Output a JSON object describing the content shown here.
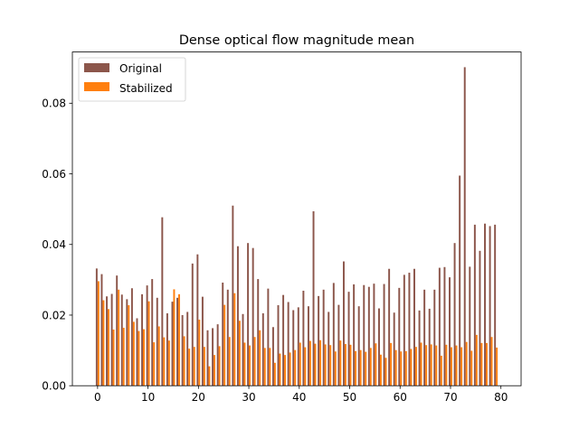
{
  "chart_data": {
    "type": "bar",
    "title": "Dense optical flow magnitude mean",
    "xlabel": "",
    "ylabel": "",
    "xlim": [
      -5,
      84
    ],
    "ylim": [
      0,
      0.0945
    ],
    "xticks": [
      0,
      10,
      20,
      30,
      40,
      50,
      60,
      70,
      80
    ],
    "yticks": [
      0.0,
      0.02,
      0.04,
      0.06,
      0.08
    ],
    "ytick_labels": [
      "0.00",
      "0.02",
      "0.04",
      "0.06",
      "0.08"
    ],
    "legend": {
      "position": "upper-left"
    },
    "x": [
      0,
      1,
      2,
      3,
      4,
      5,
      6,
      7,
      8,
      9,
      10,
      11,
      12,
      13,
      14,
      15,
      16,
      17,
      18,
      19,
      20,
      21,
      22,
      23,
      24,
      25,
      26,
      27,
      28,
      29,
      30,
      31,
      32,
      33,
      34,
      35,
      36,
      37,
      38,
      39,
      40,
      41,
      42,
      43,
      44,
      45,
      46,
      47,
      48,
      49,
      50,
      51,
      52,
      53,
      54,
      55,
      56,
      57,
      58,
      59,
      60,
      61,
      62,
      63,
      64,
      65,
      66,
      67,
      68,
      69,
      70,
      71,
      72,
      73,
      74,
      75,
      76,
      77,
      78,
      79
    ],
    "series": [
      {
        "name": "Original",
        "color": "#8c564b",
        "values": [
          0.0332,
          0.0316,
          0.0253,
          0.026,
          0.0312,
          0.0258,
          0.0245,
          0.0276,
          0.0191,
          0.0259,
          0.0284,
          0.0302,
          0.0249,
          0.0477,
          0.0205,
          0.0238,
          0.0249,
          0.02,
          0.0209,
          0.0346,
          0.0372,
          0.0252,
          0.0157,
          0.0163,
          0.0174,
          0.0292,
          0.0272,
          0.051,
          0.0395,
          0.0203,
          0.0404,
          0.039,
          0.0302,
          0.0205,
          0.0275,
          0.0166,
          0.0228,
          0.0257,
          0.0237,
          0.0214,
          0.0222,
          0.0269,
          0.0225,
          0.0494,
          0.0254,
          0.0272,
          0.0209,
          0.0291,
          0.0229,
          0.0352,
          0.0266,
          0.0287,
          0.0225,
          0.0285,
          0.028,
          0.0289,
          0.0219,
          0.0288,
          0.0331,
          0.0207,
          0.0277,
          0.0314,
          0.032,
          0.0331,
          0.0213,
          0.0272,
          0.0218,
          0.0272,
          0.0334,
          0.0336,
          0.0307,
          0.0404,
          0.0595,
          0.0902,
          0.0337,
          0.0456,
          0.0382,
          0.0459,
          0.0452,
          0.0456
        ]
      },
      {
        "name": "Stabilized",
        "color": "#ff7f0e",
        "values": [
          0.0296,
          0.0242,
          0.0217,
          0.0159,
          0.0272,
          0.0164,
          0.0228,
          0.0181,
          0.0155,
          0.016,
          0.0239,
          0.0123,
          0.0168,
          0.0137,
          0.0128,
          0.0273,
          0.0259,
          0.014,
          0.0105,
          0.011,
          0.0187,
          0.011,
          0.0055,
          0.0087,
          0.0112,
          0.0229,
          0.0138,
          0.0262,
          0.0184,
          0.0122,
          0.0114,
          0.0138,
          0.0157,
          0.0107,
          0.0107,
          0.0065,
          0.0091,
          0.0087,
          0.0094,
          0.0101,
          0.0122,
          0.0109,
          0.0127,
          0.0119,
          0.0129,
          0.0117,
          0.0115,
          0.0097,
          0.0128,
          0.0118,
          0.0116,
          0.0098,
          0.0101,
          0.0096,
          0.0107,
          0.012,
          0.0088,
          0.0079,
          0.0121,
          0.0101,
          0.0097,
          0.0098,
          0.0104,
          0.011,
          0.0122,
          0.0115,
          0.0117,
          0.0114,
          0.0085,
          0.0116,
          0.0109,
          0.0114,
          0.0109,
          0.0124,
          0.0099,
          0.0144,
          0.0121,
          0.0121,
          0.0138,
          0.0108
        ]
      }
    ]
  }
}
